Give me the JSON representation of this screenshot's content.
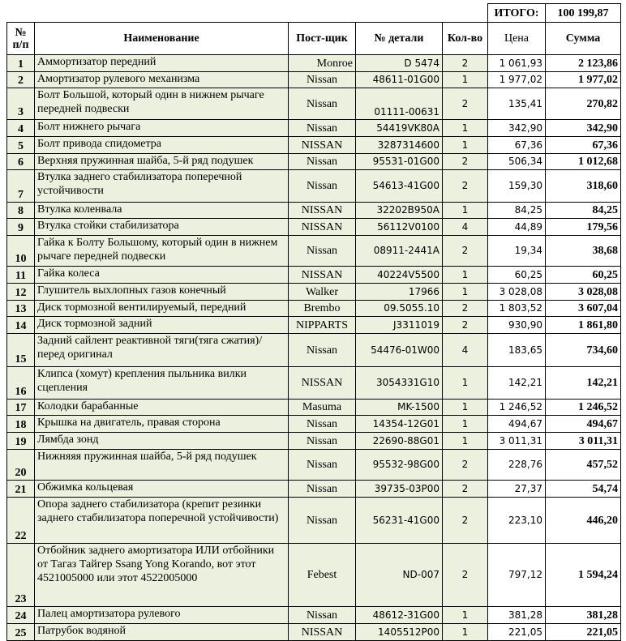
{
  "header": {
    "total_label": "ИТОГО:",
    "total_value": "100 199,87"
  },
  "table": {
    "columns": [
      "№ п/п",
      "Наименование",
      "Пост-щик",
      "№ детали",
      "Кол-во",
      "Цена",
      "Сумма"
    ],
    "rows": [
      [
        "1",
        "Аммортизатор передний",
        "Monroe",
        "D 5474",
        "2",
        "1 061,93",
        "2 123,86"
      ],
      [
        "2",
        "Амортизатор рулевого механизма",
        "Nissan",
        "48611-01G00",
        "1",
        "1 977,02",
        "1 977,02"
      ],
      [
        "3",
        "Болт Большой, который один в нижнем рычаге передней подвески",
        "Nissan",
        "01111-00631",
        "2",
        "135,41",
        "270,82"
      ],
      [
        "4",
        "Болт нижнего рычага",
        "Nissan",
        "54419VK80A",
        "1",
        "342,90",
        "342,90"
      ],
      [
        "5",
        "Болт привода спидометра",
        "NISSAN",
        "3287314600",
        "1",
        "67,36",
        "67,36"
      ],
      [
        "6",
        "Верхняя пружинная шайба, 5-й ряд подушек",
        "Nissan",
        "95531-01G00",
        "2",
        "506,34",
        "1 012,68"
      ],
      [
        "7",
        "Втулка заднего стабилизатора поперечной устойчивости",
        "Nissan",
        "54613-41G00",
        "2",
        "159,30",
        "318,60"
      ],
      [
        "8",
        "Втулка коленвала",
        "NISSAN",
        "32202B950A",
        "1",
        "84,25",
        "84,25"
      ],
      [
        "9",
        "Втулка стойки стабилизатора",
        "NISSAN",
        "56112V0100",
        "4",
        "44,89",
        "179,56"
      ],
      [
        "10",
        "Гайка к Болту Большому, который один в нижнем рычаге передней подвески",
        "Nissan",
        "08911-2441A",
        "2",
        "19,34",
        "38,68"
      ],
      [
        "11",
        "Гайка колеса",
        "NISSAN",
        "40224V5500",
        "1",
        "60,25",
        "60,25"
      ],
      [
        "12",
        "Глушитель выхлопных газов конечный",
        "Walker",
        "17966",
        "1",
        "3 028,08",
        "3 028,08"
      ],
      [
        "13",
        "Диск тормозной вентилируемый, передний",
        "Brembo",
        "09.5055.10",
        "2",
        "1 803,52",
        "3 607,04"
      ],
      [
        "14",
        "Диск тормозной задний",
        "NIPPARTS",
        "J3311019",
        "2",
        "930,90",
        "1 861,80"
      ],
      [
        "15",
        "Задний сайлент реактивной тяги(тяга сжатия)/перед  оригинал",
        "Nissan",
        "54476-01W00",
        "4",
        "183,65",
        "734,60"
      ],
      [
        "16",
        "Клипса (хомут) крепления пыльника вилки сцепления",
        "NISSAN",
        "3054331G10",
        "1",
        "142,21",
        "142,21"
      ],
      [
        "17",
        "Колодки барабанные",
        "Masuma",
        "MK-1500",
        "1",
        "1 246,52",
        "1 246,52"
      ],
      [
        "18",
        "Крышка на двигатель, правая сторона",
        "Nissan",
        "14354-12G01",
        "1",
        "494,67",
        "494,67"
      ],
      [
        "19",
        "Лямбда зонд",
        "Nissan",
        "22690-88G01",
        "1",
        "3 011,31",
        "3 011,31"
      ],
      [
        "20",
        "Нижняяя пружинная шайба, 5-й ряд подушек",
        "Nissan",
        "95532-98G00",
        "2",
        "228,76",
        "457,52"
      ],
      [
        "21",
        "Обжимка кольцевая",
        "Nissan",
        "39735-03P00",
        "2",
        "27,37",
        "54,74"
      ],
      [
        "22",
        "Опора заднего стабилизатора (крепит резинки заднего стабилизатора поперечной устойчивости)",
        "Nissan",
        "56231-41G00",
        "2",
        "223,10",
        "446,20"
      ],
      [
        "23",
        "Отбойник заднего амортизатора ИЛИ отбойники от Тагаз Тайгер Ssang Yong Korando, вот этот 4521005000 или этот 4522005000",
        "Febest",
        "ND-007",
        "2",
        "797,12",
        "1 594,24"
      ],
      [
        "24",
        "Палец амортизатора рулевого",
        "Nissan",
        "48612-31G00",
        "1",
        "381,28",
        "381,28"
      ],
      [
        "25",
        "Патрубок водяной",
        "NISSAN",
        "1405512P00",
        "1",
        "221,05",
        "221,05"
      ]
    ]
  }
}
